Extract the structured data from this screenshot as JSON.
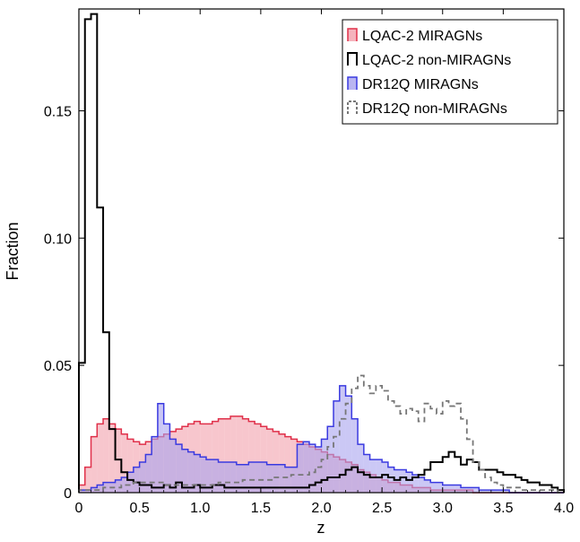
{
  "chart_data": {
    "type": "bar",
    "xlabel": "z",
    "ylabel": "Fraction",
    "xlim": [
      0,
      4.0
    ],
    "ylim": [
      0,
      0.19
    ],
    "x_ticks": [
      0,
      0.5,
      1.0,
      1.5,
      2.0,
      2.5,
      3.0,
      3.5,
      4.0
    ],
    "x_tick_labels": [
      "0",
      "0.5",
      "1.0",
      "1.5",
      "2.0",
      "2.5",
      "3.0",
      "3.5",
      "4.0"
    ],
    "y_ticks": [
      0,
      0.05,
      0.1,
      0.15
    ],
    "y_tick_labels": [
      "0",
      "0.05",
      "0.10",
      "0.15"
    ],
    "bin_width": 0.05,
    "legend_position": "top-right",
    "series": [
      {
        "name": "LQAC-2 MIRAGNs",
        "style": "filled",
        "color": "#e0304a",
        "fill": "#f2a0ab",
        "values": [
          0.003,
          0.01,
          0.022,
          0.027,
          0.029,
          0.027,
          0.025,
          0.023,
          0.021,
          0.02,
          0.019,
          0.02,
          0.021,
          0.022,
          0.023,
          0.024,
          0.025,
          0.026,
          0.027,
          0.028,
          0.027,
          0.027,
          0.028,
          0.029,
          0.029,
          0.03,
          0.03,
          0.029,
          0.028,
          0.027,
          0.026,
          0.025,
          0.024,
          0.023,
          0.022,
          0.021,
          0.02,
          0.019,
          0.018,
          0.017,
          0.016,
          0.015,
          0.014,
          0.013,
          0.012,
          0.011,
          0.009,
          0.008,
          0.007,
          0.006,
          0.005,
          0.004,
          0.004,
          0.003,
          0.003,
          0.002,
          0.002,
          0.002,
          0.001,
          0.001,
          0.001,
          0.001,
          0.001,
          0.001,
          0.001,
          0.0,
          0.0,
          0.0,
          0.0,
          0.0,
          0.0,
          0.0,
          0.0,
          0.0,
          0.0,
          0.0,
          0.0,
          0.0,
          0.0,
          0.0
        ]
      },
      {
        "name": "LQAC-2 non-MIRAGNs",
        "style": "step",
        "color": "#000000",
        "values": [
          0.051,
          0.186,
          0.188,
          0.112,
          0.063,
          0.025,
          0.013,
          0.008,
          0.005,
          0.004,
          0.003,
          0.003,
          0.002,
          0.002,
          0.003,
          0.002,
          0.004,
          0.002,
          0.002,
          0.003,
          0.002,
          0.002,
          0.003,
          0.003,
          0.002,
          0.002,
          0.002,
          0.002,
          0.002,
          0.002,
          0.002,
          0.002,
          0.002,
          0.002,
          0.002,
          0.002,
          0.002,
          0.002,
          0.003,
          0.004,
          0.005,
          0.006,
          0.006,
          0.007,
          0.009,
          0.01,
          0.008,
          0.007,
          0.006,
          0.006,
          0.007,
          0.006,
          0.005,
          0.006,
          0.005,
          0.006,
          0.007,
          0.009,
          0.012,
          0.012,
          0.014,
          0.016,
          0.014,
          0.011,
          0.013,
          0.012,
          0.009,
          0.009,
          0.009,
          0.008,
          0.007,
          0.007,
          0.006,
          0.005,
          0.004,
          0.004,
          0.003,
          0.003,
          0.002,
          0.001
        ]
      },
      {
        "name": "DR12Q MIRAGNs",
        "style": "filled",
        "color": "#3a3ae0",
        "fill": "#a8a3ee",
        "values": [
          0.001,
          0.001,
          0.002,
          0.003,
          0.004,
          0.004,
          0.005,
          0.006,
          0.008,
          0.01,
          0.012,
          0.015,
          0.022,
          0.035,
          0.027,
          0.021,
          0.019,
          0.017,
          0.016,
          0.015,
          0.014,
          0.013,
          0.013,
          0.012,
          0.012,
          0.012,
          0.011,
          0.011,
          0.012,
          0.012,
          0.012,
          0.011,
          0.011,
          0.011,
          0.01,
          0.01,
          0.019,
          0.02,
          0.019,
          0.018,
          0.021,
          0.026,
          0.036,
          0.042,
          0.038,
          0.029,
          0.019,
          0.015,
          0.013,
          0.013,
          0.012,
          0.01,
          0.009,
          0.009,
          0.008,
          0.007,
          0.006,
          0.005,
          0.004,
          0.004,
          0.003,
          0.003,
          0.003,
          0.002,
          0.002,
          0.002,
          0.001,
          0.001,
          0.001,
          0.001,
          0.001,
          0.0,
          0.0,
          0.0,
          0.0,
          0.0,
          0.0,
          0.0,
          0.0,
          0.0
        ]
      },
      {
        "name": "DR12Q non-MIRAGNs",
        "style": "dashed-step",
        "color": "#777777",
        "values": [
          0.001,
          0.001,
          0.001,
          0.001,
          0.002,
          0.002,
          0.002,
          0.003,
          0.003,
          0.004,
          0.004,
          0.004,
          0.004,
          0.004,
          0.003,
          0.003,
          0.003,
          0.003,
          0.003,
          0.003,
          0.003,
          0.003,
          0.003,
          0.004,
          0.004,
          0.004,
          0.004,
          0.005,
          0.005,
          0.005,
          0.005,
          0.005,
          0.006,
          0.006,
          0.006,
          0.007,
          0.007,
          0.007,
          0.008,
          0.01,
          0.013,
          0.018,
          0.022,
          0.029,
          0.035,
          0.041,
          0.046,
          0.042,
          0.039,
          0.042,
          0.04,
          0.036,
          0.034,
          0.031,
          0.033,
          0.032,
          0.028,
          0.035,
          0.033,
          0.031,
          0.036,
          0.034,
          0.035,
          0.029,
          0.021,
          0.012,
          0.009,
          0.006,
          0.004,
          0.003,
          0.002,
          0.002,
          0.002,
          0.001,
          0.001,
          0.001,
          0.001,
          0.001,
          0.001,
          0.0
        ]
      }
    ]
  }
}
